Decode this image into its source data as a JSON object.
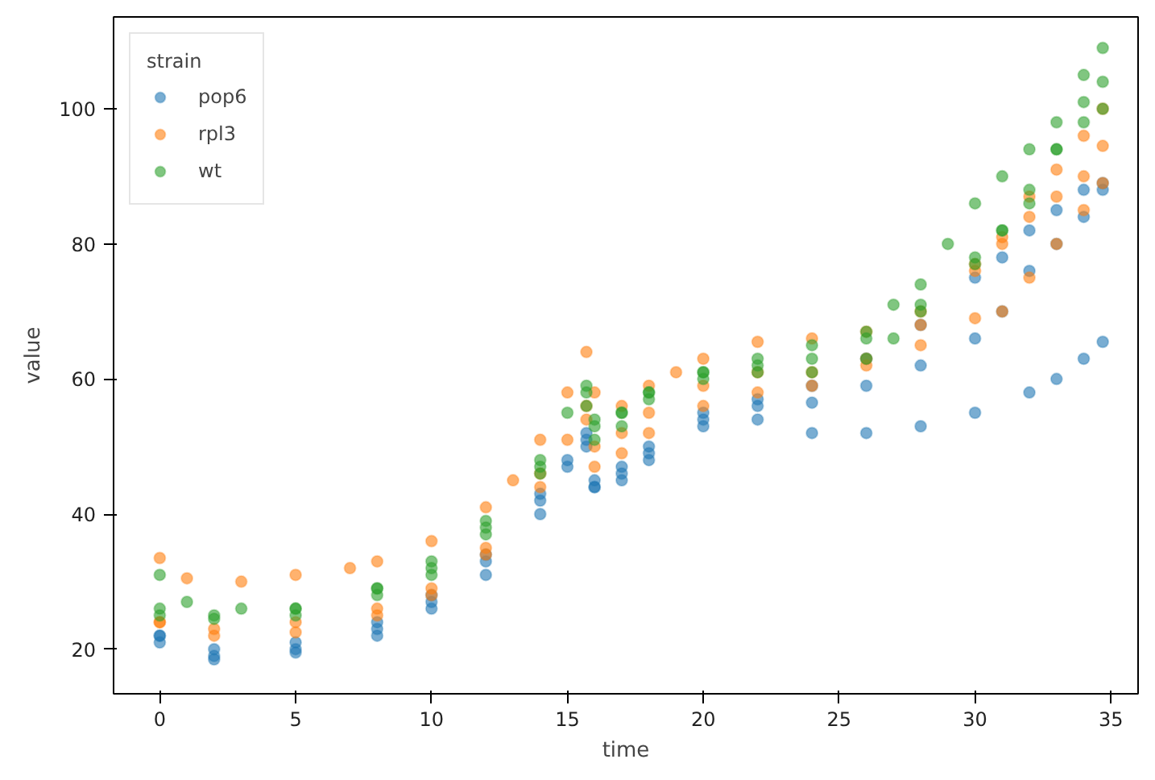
{
  "chart_data": {
    "type": "scatter",
    "xlabel": "time",
    "ylabel": "value",
    "legend_title": "strain",
    "legend": "top left",
    "grid": false,
    "marker": "circle",
    "xlim": [
      -1.7,
      36.0
    ],
    "xticks": [
      0,
      5,
      10,
      15,
      20,
      25,
      30,
      35
    ],
    "ylim": [
      13.4,
      113.6
    ],
    "yticks": [
      20,
      40,
      60,
      80,
      100
    ],
    "series": [
      {
        "name": "pop6",
        "color": "#1f77b4",
        "x": [
          0,
          2,
          5,
          8,
          10,
          12,
          14,
          15,
          15.7,
          16,
          17,
          18,
          20,
          22,
          24,
          26,
          28,
          30,
          32,
          33,
          34,
          34.7,
          0,
          2,
          5,
          8,
          10,
          12,
          14,
          15,
          15.7,
          16,
          17,
          18,
          20,
          22,
          24,
          26,
          28,
          30,
          31,
          32,
          33,
          34,
          34.7,
          0,
          2,
          5,
          8,
          10,
          12,
          14,
          15.7,
          16,
          17,
          18,
          20,
          22,
          24,
          26,
          28,
          30,
          31,
          32,
          33,
          34,
          34.7
        ],
        "values": [
          22,
          18.5,
          19.5,
          22,
          26,
          31,
          40,
          47,
          50,
          44,
          45,
          48,
          53,
          54,
          52,
          52,
          53,
          55,
          58,
          60,
          63,
          65.5,
          21,
          19,
          20,
          23,
          27,
          33,
          42,
          48,
          51,
          44,
          46,
          49,
          54,
          56,
          56.5,
          59,
          62,
          66,
          70,
          76,
          80,
          84,
          88,
          22,
          20,
          21,
          24,
          28,
          34,
          43,
          52,
          45,
          47,
          50,
          55,
          57,
          59,
          63,
          68,
          75,
          78,
          82,
          85,
          88,
          89
        ]
      },
      {
        "name": "rpl3",
        "color": "#ff7f0e",
        "x": [
          0,
          1,
          3,
          5,
          7,
          8,
          10,
          12,
          13,
          14,
          15,
          15.7,
          16,
          17,
          18,
          19,
          20,
          22,
          24,
          26,
          28,
          30,
          31,
          32,
          33,
          34,
          34.7,
          0,
          2,
          5,
          8,
          10,
          12,
          14,
          15,
          15.7,
          16,
          17,
          18,
          20,
          22,
          24,
          26,
          28,
          30,
          31,
          32,
          33,
          34,
          34.7,
          0,
          2,
          5,
          8,
          10,
          12,
          14,
          15.7,
          16,
          17,
          18,
          20,
          22,
          24,
          26,
          28,
          30,
          31,
          32,
          33,
          34,
          34.7
        ],
        "values": [
          33.5,
          30.5,
          30,
          31,
          32,
          33,
          36,
          41,
          45,
          51,
          58,
          64,
          58,
          56,
          59,
          61,
          63,
          65.5,
          66,
          67,
          70,
          76,
          80,
          84,
          87,
          90,
          94.5,
          24,
          22,
          22.5,
          25,
          28,
          34,
          44,
          51,
          56,
          47,
          49,
          52,
          56,
          58,
          59,
          62,
          65,
          69,
          70,
          75,
          80,
          85,
          89,
          24,
          23,
          24,
          26,
          29,
          35,
          46,
          54,
          50,
          52,
          55,
          59,
          61,
          61,
          63,
          68,
          77,
          81,
          87,
          91,
          96,
          100
        ]
      },
      {
        "name": "wt",
        "color": "#2ca02c",
        "x": [
          0,
          2,
          5,
          8,
          10,
          12,
          14,
          15,
          15.7,
          16,
          17,
          18,
          20,
          22,
          24,
          26,
          27,
          28,
          29,
          30,
          31,
          32,
          33,
          34,
          34.7,
          0,
          1,
          3,
          5,
          8,
          10,
          12,
          14,
          15.7,
          16,
          17,
          18,
          20,
          22,
          24,
          26,
          28,
          30,
          31,
          32,
          33,
          34,
          34.7,
          0,
          2,
          5,
          8,
          10,
          12,
          14,
          15.7,
          16,
          17,
          18,
          20,
          22,
          24,
          26,
          27,
          28,
          30,
          31,
          32,
          33,
          34,
          34.7
        ],
        "values": [
          26,
          25,
          26,
          29,
          33,
          39,
          48,
          55,
          59,
          53,
          55,
          58,
          61,
          63,
          65,
          67,
          71,
          74,
          80,
          86,
          90,
          94,
          98,
          105,
          109,
          31,
          27,
          26,
          26,
          29,
          32,
          38,
          47,
          58,
          54,
          55,
          58,
          61,
          62,
          63,
          66,
          71,
          78,
          82,
          86,
          94,
          101,
          104,
          25,
          24.5,
          25,
          28,
          31,
          37,
          46,
          56,
          51,
          53,
          57,
          60,
          61,
          61,
          63,
          66,
          70,
          77,
          82,
          88,
          94,
          98,
          100
        ]
      }
    ]
  }
}
